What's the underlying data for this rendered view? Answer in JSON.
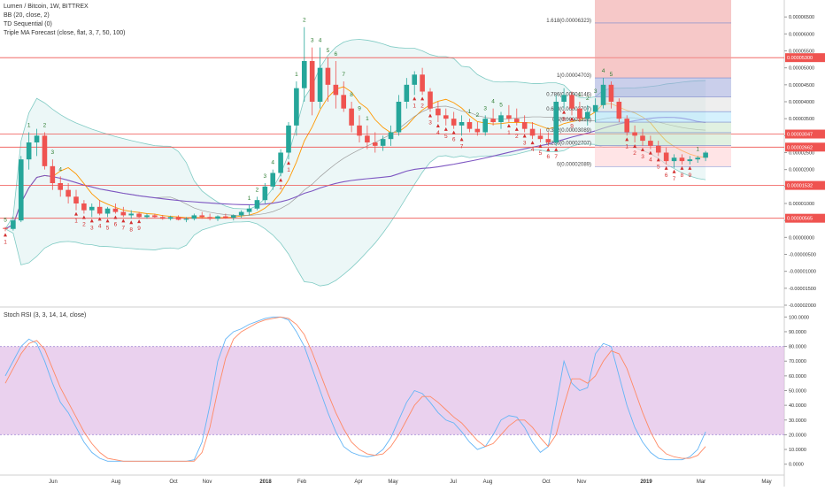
{
  "legend": {
    "title": "Lumen / Bitcoin, 1W, BITTREX",
    "indicators": [
      "BB (20, close, 2)",
      "TD Sequential (0)",
      "Triple MA Forecast (close, flat, 3, 7, 50, 100)"
    ],
    "rsi_title": "Stoch RSI (3, 3, 14, 14, close)"
  },
  "colors": {
    "up": "#26a69a",
    "down": "#ef5350",
    "bb_fill": "#e0f2f1",
    "bb_line": "#80cbc4",
    "ma_fast": "#ff9800",
    "ma_slow": "#7e57c2",
    "ma_mid": "#9e9e9e",
    "hline": "#ef5350",
    "rsi_band": "#e1bee7",
    "rsi_k": "#64b5f6",
    "rsi_d": "#ff8a65",
    "price_tag": "#ef5350"
  },
  "chart_data": [
    {
      "type": "candlestick",
      "title": "Lumen / Bitcoin, 1W, BITTREX",
      "ylim": [
        -2e-05,
        7e-05
      ],
      "y_ticks": [
        "0.00006500",
        "0.00006000",
        "0.00005500",
        "0.00005000",
        "0.00004500",
        "0.00004000",
        "0.00003500",
        "0.00003000",
        "0.00002500",
        "0.00002000",
        "0.00001500",
        "0.00001000",
        "0.00000500",
        "0.00000000",
        "-0.00000500",
        "-0.00001000",
        "-0.00001500",
        "-0.00002000"
      ],
      "x_ticks": [
        "Jun",
        "Aug",
        "Oct",
        "Nov",
        "2018",
        "Feb",
        "Apr",
        "May",
        "Jul",
        "Aug",
        "Oct",
        "Nov",
        "2019",
        "Mar",
        "May"
      ],
      "candles": [
        [
          2.8e-06,
          3.1e-06,
          1.8e-06,
          2.5e-06
        ],
        [
          2.5e-06,
          6e-06,
          2e-06,
          5e-06
        ],
        [
          5e-06,
          2.4e-05,
          4.5e-06,
          2.3e-05
        ],
        [
          2.3e-05,
          3.1e-05,
          2e-05,
          2.8e-05
        ],
        [
          2.8e-05,
          3.2e-05,
          2.4e-05,
          3e-05
        ],
        [
          3e-05,
          3.1e-05,
          2e-05,
          2.1e-05
        ],
        [
          2.1e-05,
          2.3e-05,
          1.4e-05,
          1.6e-05
        ],
        [
          1.6e-05,
          1.8e-05,
          1.2e-05,
          1.4e-05
        ],
        [
          1.4e-05,
          1.6e-05,
          1e-05,
          1.2e-05
        ],
        [
          1.2e-05,
          1.4e-05,
          8e-06,
          1e-05
        ],
        [
          1e-05,
          1.1e-05,
          7e-06,
          8e-06
        ],
        [
          8e-06,
          1e-05,
          6e-06,
          9e-06
        ],
        [
          9e-06,
          1.1e-05,
          6.5e-06,
          7e-06
        ],
        [
          7e-06,
          9e-06,
          6e-06,
          8.5e-06
        ],
        [
          8.5e-06,
          1e-05,
          7e-06,
          7.5e-06
        ],
        [
          7.5e-06,
          9e-06,
          6e-06,
          6.5e-06
        ],
        [
          6.5e-06,
          8e-06,
          5.5e-06,
          7e-06
        ],
        [
          7e-06,
          7.5e-06,
          5.8e-06,
          6e-06
        ],
        [
          6e-06,
          7e-06,
          5.5e-06,
          6.5e-06
        ],
        [
          6.5e-06,
          7e-06,
          5.8e-06,
          6e-06
        ],
        [
          6e-06,
          6.6e-06,
          5.2e-06,
          5.5e-06
        ],
        [
          5.5e-06,
          6.4e-06,
          5e-06,
          6e-06
        ],
        [
          6e-06,
          6.5e-06,
          5e-06,
          5.2e-06
        ],
        [
          5.2e-06,
          6e-06,
          4.5e-06,
          5.5e-06
        ],
        [
          5.5e-06,
          7e-06,
          5e-06,
          6.5e-06
        ],
        [
          6.5e-06,
          7.5e-06,
          5.5e-06,
          6e-06
        ],
        [
          6e-06,
          7e-06,
          5e-06,
          5.5e-06
        ],
        [
          5.5e-06,
          6.5e-06,
          4.8e-06,
          6.2e-06
        ],
        [
          6.2e-06,
          7e-06,
          5.5e-06,
          5.8e-06
        ],
        [
          5.8e-06,
          6.8e-06,
          5e-06,
          6.5e-06
        ],
        [
          6.5e-06,
          8e-06,
          5.8e-06,
          7.5e-06
        ],
        [
          7.5e-06,
          9.5e-06,
          6.5e-06,
          8.5e-06
        ],
        [
          8.5e-06,
          1.2e-05,
          8e-06,
          1.1e-05
        ],
        [
          1.1e-05,
          1.6e-05,
          1e-05,
          1.5e-05
        ],
        [
          1.5e-05,
          2e-05,
          1.4e-05,
          1.9e-05
        ],
        [
          1.9e-05,
          2.6e-05,
          1.8e-05,
          2.5e-05
        ],
        [
          2.5e-05,
          3.4e-05,
          2.3e-05,
          3.3e-05
        ],
        [
          3.3e-05,
          4.6e-05,
          3e-05,
          4.4e-05
        ],
        [
          4.4e-05,
          6.2e-05,
          4e-05,
          5.2e-05
        ],
        [
          5.2e-05,
          5.6e-05,
          3.6e-05,
          4e-05
        ],
        [
          4e-05,
          5.6e-05,
          3.8e-05,
          5e-05
        ],
        [
          5e-05,
          5.3e-05,
          4e-05,
          4.5e-05
        ],
        [
          4.5e-05,
          5.2e-05,
          3.8e-05,
          4.2e-05
        ],
        [
          4.2e-05,
          4.6e-05,
          3.7e-05,
          3.8e-05
        ],
        [
          3.8e-05,
          4e-05,
          3.1e-05,
          3.3e-05
        ],
        [
          3.3e-05,
          3.6e-05,
          2.8e-05,
          3e-05
        ],
        [
          3e-05,
          3.3e-05,
          2.6e-05,
          2.8e-05
        ],
        [
          2.8e-05,
          3.1e-05,
          2.5e-05,
          2.7e-05
        ],
        [
          2.7e-05,
          3e-05,
          2.55e-05,
          2.9e-05
        ],
        [
          2.9e-05,
          3.3e-05,
          2.7e-05,
          3.1e-05
        ],
        [
          3.1e-05,
          4.2e-05,
          3e-05,
          4e-05
        ],
        [
          4e-05,
          4.7e-05,
          3.8e-05,
          4.5e-05
        ],
        [
          4.5e-05,
          4.9e-05,
          4.2e-05,
          4.8e-05
        ],
        [
          4.8e-05,
          5e-05,
          4.2e-05,
          4.3e-05
        ],
        [
          4.3e-05,
          4.4e-05,
          3.7e-05,
          3.8e-05
        ],
        [
          3.8e-05,
          4e-05,
          3.4e-05,
          3.6e-05
        ],
        [
          3.6e-05,
          3.8e-05,
          3.3e-05,
          3.5e-05
        ],
        [
          3.5e-05,
          3.7e-05,
          3.2e-05,
          3.3e-05
        ],
        [
          3.3e-05,
          3.6e-05,
          3e-05,
          3.4e-05
        ],
        [
          3.4e-05,
          3.5e-05,
          3.1e-05,
          3.2e-05
        ],
        [
          3.2e-05,
          3.4e-05,
          3e-05,
          3.1e-05
        ],
        [
          3.1e-05,
          3.6e-05,
          3e-05,
          3.5e-05
        ],
        [
          3.5e-05,
          3.8e-05,
          3.3e-05,
          3.4e-05
        ],
        [
          3.4e-05,
          3.7e-05,
          3.2e-05,
          3.6e-05
        ],
        [
          3.6e-05,
          3.9e-05,
          3.4e-05,
          3.5e-05
        ],
        [
          3.5e-05,
          3.8e-05,
          3.3e-05,
          3.4e-05
        ],
        [
          3.4e-05,
          3.6e-05,
          3.1e-05,
          3.2e-05
        ],
        [
          3.2e-05,
          3.4e-05,
          2.9e-05,
          3e-05
        ],
        [
          3e-05,
          3.2e-05,
          2.8e-05,
          2.9e-05
        ],
        [
          2.9e-05,
          3.1e-05,
          2.7e-05,
          2.8e-05
        ],
        [
          2.8e-05,
          4.2e-05,
          2.7e-05,
          4e-05
        ],
        [
          4e-05,
          4.4e-05,
          3.8e-05,
          4.2e-05
        ],
        [
          4.2e-05,
          4.3e-05,
          3.6e-05,
          3.8e-05
        ],
        [
          3.8e-05,
          4e-05,
          3.4e-05,
          3.5e-05
        ],
        [
          3.5e-05,
          3.9e-05,
          3.3e-05,
          3.7e-05
        ],
        [
          3.7e-05,
          4.1e-05,
          3.4e-05,
          3.9e-05
        ],
        [
          3.9e-05,
          4.7e-05,
          3.8e-05,
          4.5e-05
        ],
        [
          4.5e-05,
          4.6e-05,
          3.8e-05,
          4e-05
        ],
        [
          4e-05,
          4.1e-05,
          3.4e-05,
          3.5e-05
        ],
        [
          3.5e-05,
          3.6e-05,
          3e-05,
          3.1e-05
        ],
        [
          3.1e-05,
          3.3e-05,
          2.8e-05,
          3e-05
        ],
        [
          3e-05,
          3.2e-05,
          2.7e-05,
          2.85e-05
        ],
        [
          2.85e-05,
          3e-05,
          2.6e-05,
          2.7e-05
        ],
        [
          2.7e-05,
          2.85e-05,
          2.4e-05,
          2.5e-05
        ],
        [
          2.5e-05,
          2.65e-05,
          2.15e-05,
          2.25e-05
        ],
        [
          2.25e-05,
          2.45e-05,
          2.05e-05,
          2.35e-05
        ],
        [
          2.35e-05,
          2.45e-05,
          2.15e-05,
          2.25e-05
        ],
        [
          2.25e-05,
          2.4e-05,
          2.15e-05,
          2.3e-05
        ],
        [
          2.3e-05,
          2.4e-05,
          2.2e-05,
          2.35e-05
        ],
        [
          2.35e-05,
          2.55e-05,
          2.25e-05,
          2.5e-05
        ]
      ],
      "horizontal_levels": [
        "0.00005300",
        "0.00003047",
        "0.00002662",
        "0.00001532",
        "0.00000565"
      ],
      "fib_levels": [
        {
          "label": "1.618(0.00006323)",
          "value": 6.323e-05
        },
        {
          "label": "1(0.00004703)",
          "value": 4.703e-05
        },
        {
          "label": "0.786(0.00004146)",
          "value": 4.146e-05
        },
        {
          "label": "0.618(0.00003707)",
          "value": 3.707e-05
        },
        {
          "label": "0.5(0.00003398)",
          "value": 3.398e-05
        },
        {
          "label": "0.382(0.00003089)",
          "value": 3.089e-05
        },
        {
          "label": "0.236(0.00002707)",
          "value": 2.707e-05
        },
        {
          "label": "0(0.00002089)",
          "value": 2.089e-05
        }
      ],
      "td_labels": [
        {
          "i": 0,
          "t": "5",
          "up": true
        },
        {
          "i": 3,
          "t": "1",
          "up": true
        },
        {
          "i": 5,
          "t": "2",
          "up": true
        },
        {
          "i": 6,
          "t": "3",
          "up": true
        },
        {
          "i": 7,
          "t": "4",
          "up": true
        },
        {
          "i": 9,
          "t": "1",
          "up": false
        },
        {
          "i": 10,
          "t": "2",
          "up": false
        },
        {
          "i": 11,
          "t": "3",
          "up": false
        },
        {
          "i": 12,
          "t": "4",
          "up": false
        },
        {
          "i": 13,
          "t": "5",
          "up": false
        },
        {
          "i": 14,
          "t": "6",
          "up": false
        },
        {
          "i": 15,
          "t": "7",
          "up": false
        },
        {
          "i": 16,
          "t": "8",
          "up": false
        },
        {
          "i": 17,
          "t": "9",
          "up": false
        },
        {
          "i": 0,
          "t": "1",
          "up": false
        },
        {
          "i": 31,
          "t": "1",
          "up": true
        },
        {
          "i": 32,
          "t": "2",
          "up": true
        },
        {
          "i": 33,
          "t": "3",
          "up": true
        },
        {
          "i": 34,
          "t": "4",
          "up": true
        },
        {
          "i": 35,
          "t": "1",
          "up": false
        },
        {
          "i": 36,
          "t": "1",
          "up": false
        },
        {
          "i": 37,
          "t": "1",
          "up": true
        },
        {
          "i": 38,
          "t": "2",
          "up": true
        },
        {
          "i": 39,
          "t": "3",
          "up": true
        },
        {
          "i": 40,
          "t": "4",
          "up": true
        },
        {
          "i": 41,
          "t": "5",
          "up": true
        },
        {
          "i": 42,
          "t": "6",
          "up": true
        },
        {
          "i": 43,
          "t": "7",
          "up": true
        },
        {
          "i": 44,
          "t": "8",
          "up": true
        },
        {
          "i": 45,
          "t": "9",
          "up": true
        },
        {
          "i": 46,
          "t": "1",
          "up": true
        },
        {
          "i": 52,
          "t": "1",
          "up": false
        },
        {
          "i": 53,
          "t": "2",
          "up": false
        },
        {
          "i": 54,
          "t": "3",
          "up": false
        },
        {
          "i": 55,
          "t": "4",
          "up": false
        },
        {
          "i": 56,
          "t": "5",
          "up": false
        },
        {
          "i": 57,
          "t": "6",
          "up": false
        },
        {
          "i": 58,
          "t": "7",
          "up": false
        },
        {
          "i": 59,
          "t": "1",
          "up": true
        },
        {
          "i": 60,
          "t": "2",
          "up": true
        },
        {
          "i": 61,
          "t": "3",
          "up": true
        },
        {
          "i": 62,
          "t": "4",
          "up": true
        },
        {
          "i": 63,
          "t": "5",
          "up": true
        },
        {
          "i": 64,
          "t": "1",
          "up": false
        },
        {
          "i": 65,
          "t": "2",
          "up": false
        },
        {
          "i": 66,
          "t": "3",
          "up": false
        },
        {
          "i": 67,
          "t": "4",
          "up": false
        },
        {
          "i": 68,
          "t": "5",
          "up": false
        },
        {
          "i": 69,
          "t": "6",
          "up": false
        },
        {
          "i": 70,
          "t": "7",
          "up": false
        },
        {
          "i": 71,
          "t": "8",
          "up": false
        },
        {
          "i": 72,
          "t": "9",
          "up": false
        },
        {
          "i": 73,
          "t": "1",
          "up": true
        },
        {
          "i": 74,
          "t": "2",
          "up": true
        },
        {
          "i": 75,
          "t": "3",
          "up": true
        },
        {
          "i": 76,
          "t": "4",
          "up": true
        },
        {
          "i": 77,
          "t": "5",
          "up": true
        },
        {
          "i": 79,
          "t": "1",
          "up": false
        },
        {
          "i": 80,
          "t": "2",
          "up": false
        },
        {
          "i": 81,
          "t": "3",
          "up": false
        },
        {
          "i": 82,
          "t": "4",
          "up": false
        },
        {
          "i": 83,
          "t": "5",
          "up": false
        },
        {
          "i": 84,
          "t": "6",
          "up": false
        },
        {
          "i": 85,
          "t": "7",
          "up": false
        },
        {
          "i": 86,
          "t": "8",
          "up": false
        },
        {
          "i": 87,
          "t": "9",
          "up": false
        },
        {
          "i": 88,
          "t": "1",
          "up": true
        }
      ]
    },
    {
      "type": "line",
      "title": "Stoch RSI (3, 3, 14, 14, close)",
      "ylim": [
        -5,
        105
      ],
      "y_ticks": [
        "100.0000",
        "90.0000",
        "80.0000",
        "70.0000",
        "60.0000",
        "50.0000",
        "40.0000",
        "30.0000",
        "20.0000",
        "10.0000",
        "0.0000"
      ],
      "band": [
        20,
        80
      ],
      "k": [
        60,
        70,
        80,
        85,
        82,
        70,
        55,
        42,
        35,
        25,
        15,
        8,
        4,
        2,
        2,
        2,
        2,
        2,
        2,
        2,
        2,
        2,
        2,
        2,
        3,
        15,
        40,
        70,
        85,
        90,
        92,
        95,
        97,
        99,
        100,
        100,
        98,
        90,
        80,
        65,
        50,
        35,
        22,
        12,
        8,
        6,
        5,
        6,
        10,
        18,
        30,
        42,
        50,
        48,
        42,
        35,
        30,
        28,
        22,
        15,
        10,
        12,
        20,
        30,
        33,
        32,
        25,
        15,
        8,
        12,
        40,
        70,
        55,
        50,
        52,
        75,
        82,
        80,
        60,
        40,
        25,
        15,
        8,
        4,
        3,
        3,
        3,
        5,
        10,
        22
      ],
      "d": [
        55,
        65,
        75,
        82,
        84,
        78,
        65,
        52,
        42,
        32,
        22,
        14,
        8,
        4,
        3,
        2,
        2,
        2,
        2,
        2,
        2,
        2,
        2,
        2,
        2,
        8,
        25,
        50,
        72,
        85,
        90,
        93,
        96,
        98,
        99,
        100,
        99,
        95,
        88,
        76,
        62,
        48,
        35,
        24,
        15,
        10,
        7,
        6,
        7,
        12,
        20,
        30,
        40,
        46,
        46,
        42,
        37,
        32,
        28,
        22,
        16,
        12,
        14,
        20,
        26,
        30,
        30,
        25,
        18,
        12,
        20,
        40,
        58,
        58,
        55,
        60,
        70,
        77,
        75,
        65,
        50,
        35,
        22,
        12,
        7,
        5,
        4,
        4,
        6,
        12
      ]
    }
  ]
}
